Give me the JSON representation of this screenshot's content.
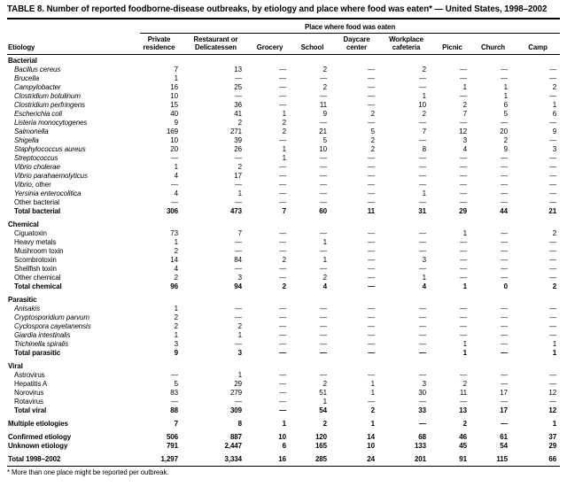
{
  "title": "TABLE 8. Number of reported foodborne-disease outbreaks, by etiology and place where food was eaten* — United States, 1998–2002",
  "table": {
    "spanner": "Place where food was eaten",
    "etiology_header": "Etiology",
    "columns": [
      "Private residence",
      "Restaurant or Delicatessen",
      "Grocery",
      "School",
      "Daycare center",
      "Workplace cafeteria",
      "Picnic",
      "Church",
      "Camp"
    ],
    "sections": [
      {
        "name": "Bacterial",
        "rows": [
          {
            "label": "Bacillus cereus",
            "italic": true,
            "values": [
              "7",
              "13",
              "—",
              "2",
              "—",
              "2",
              "—",
              "—",
              "—"
            ]
          },
          {
            "label": "Brucella",
            "italic": true,
            "values": [
              "1",
              "—",
              "—",
              "—",
              "—",
              "—",
              "—",
              "—",
              "—"
            ]
          },
          {
            "label": "Campylobacter",
            "italic": true,
            "values": [
              "16",
              "25",
              "—",
              "2",
              "—",
              "—",
              "1",
              "1",
              "2"
            ]
          },
          {
            "label": "Clostridium botulinum",
            "italic": true,
            "values": [
              "10",
              "—",
              "—",
              "—",
              "—",
              "1",
              "—",
              "1",
              "—"
            ]
          },
          {
            "label": "Clostridium perfringens",
            "italic": true,
            "values": [
              "15",
              "36",
              "—",
              "11",
              "—",
              "10",
              "2",
              "6",
              "1"
            ]
          },
          {
            "label": "Escherichia coli",
            "italic": true,
            "values": [
              "40",
              "41",
              "1",
              "9",
              "2",
              "2",
              "7",
              "5",
              "6"
            ]
          },
          {
            "label": "Listeria monocytogenes",
            "italic": true,
            "values": [
              "9",
              "2",
              "2",
              "—",
              "—",
              "—",
              "—",
              "—",
              "—"
            ]
          },
          {
            "label": "Salmonella",
            "italic": true,
            "values": [
              "169",
              "271",
              "2",
              "21",
              "5",
              "7",
              "12",
              "20",
              "9"
            ]
          },
          {
            "label": "Shigella",
            "italic": true,
            "values": [
              "10",
              "39",
              "—",
              "5",
              "2",
              "—",
              "3",
              "2",
              "—"
            ]
          },
          {
            "label": "Staphylococcus aureus",
            "italic": true,
            "values": [
              "20",
              "26",
              "1",
              "10",
              "2",
              "8",
              "4",
              "9",
              "3"
            ]
          },
          {
            "label": "Streptococcus",
            "italic": true,
            "values": [
              "—",
              "—",
              "1",
              "—",
              "—",
              "—",
              "—",
              "—",
              "—"
            ]
          },
          {
            "label": "Vibrio cholerae",
            "italic": true,
            "values": [
              "1",
              "2",
              "—",
              "—",
              "—",
              "—",
              "—",
              "—",
              "—"
            ]
          },
          {
            "label": "Vibrio parahaemolyticus",
            "italic": true,
            "values": [
              "4",
              "17",
              "—",
              "—",
              "—",
              "—",
              "—",
              "—",
              "—"
            ]
          },
          {
            "label": "Vibrio",
            "label_suffix": ", other",
            "italic": true,
            "values": [
              "—",
              "—",
              "—",
              "—",
              "—",
              "—",
              "—",
              "—",
              "—"
            ]
          },
          {
            "label": "Yersinia enterocolitica",
            "italic": true,
            "values": [
              "4",
              "1",
              "—",
              "—",
              "—",
              "1",
              "—",
              "—",
              "—"
            ]
          },
          {
            "label": "Other bacterial",
            "italic": false,
            "values": [
              "—",
              "—",
              "—",
              "—",
              "—",
              "—",
              "—",
              "—",
              "—"
            ]
          },
          {
            "label": "Total bacterial",
            "italic": false,
            "total": true,
            "values": [
              "306",
              "473",
              "7",
              "60",
              "11",
              "31",
              "29",
              "44",
              "21"
            ]
          }
        ]
      },
      {
        "name": "Chemical",
        "rows": [
          {
            "label": "Ciguatoxin",
            "italic": false,
            "values": [
              "73",
              "7",
              "—",
              "—",
              "—",
              "—",
              "1",
              "—",
              "2"
            ]
          },
          {
            "label": "Heavy metals",
            "italic": false,
            "values": [
              "1",
              "—",
              "—",
              "1",
              "—",
              "—",
              "—",
              "—",
              "—"
            ]
          },
          {
            "label": "Mushroom toxin",
            "italic": false,
            "values": [
              "2",
              "—",
              "—",
              "—",
              "—",
              "—",
              "—",
              "—",
              "—"
            ]
          },
          {
            "label": "Scombrotoxin",
            "italic": false,
            "values": [
              "14",
              "84",
              "2",
              "1",
              "—",
              "3",
              "—",
              "—",
              "—"
            ]
          },
          {
            "label": "Shellfish toxin",
            "italic": false,
            "values": [
              "4",
              "—",
              "—",
              "—",
              "—",
              "—",
              "—",
              "—",
              "—"
            ]
          },
          {
            "label": "Other chemical",
            "italic": false,
            "values": [
              "2",
              "3",
              "—",
              "2",
              "—",
              "1",
              "—",
              "—",
              "—"
            ]
          },
          {
            "label": "Total chemical",
            "italic": false,
            "total": true,
            "values": [
              "96",
              "94",
              "2",
              "4",
              "—",
              "4",
              "1",
              "0",
              "2"
            ]
          }
        ]
      },
      {
        "name": "Parasitic",
        "rows": [
          {
            "label": "Anisakis",
            "italic": true,
            "values": [
              "1",
              "—",
              "—",
              "—",
              "—",
              "—",
              "—",
              "—",
              "—"
            ]
          },
          {
            "label": "Cryptosporidium parvum",
            "italic": true,
            "values": [
              "2",
              "—",
              "—",
              "—",
              "—",
              "—",
              "—",
              "—",
              "—"
            ]
          },
          {
            "label": "Cyclospora cayetanensis",
            "italic": true,
            "values": [
              "2",
              "2",
              "—",
              "—",
              "—",
              "—",
              "—",
              "—",
              "—"
            ]
          },
          {
            "label": "Giardia intestinalis",
            "italic": true,
            "values": [
              "1",
              "1",
              "—",
              "—",
              "—",
              "—",
              "—",
              "—",
              "—"
            ]
          },
          {
            "label": "Trichinella spiralis",
            "italic": true,
            "values": [
              "3",
              "—",
              "—",
              "—",
              "—",
              "—",
              "1",
              "—",
              "1"
            ]
          },
          {
            "label": "Total parasitic",
            "italic": false,
            "total": true,
            "values": [
              "9",
              "3",
              "—",
              "—",
              "—",
              "—",
              "1",
              "—",
              "1"
            ]
          }
        ]
      },
      {
        "name": "Viral",
        "rows": [
          {
            "label": "Astrovirus",
            "italic": false,
            "values": [
              "—",
              "1",
              "—",
              "—",
              "—",
              "—",
              "—",
              "—",
              "—"
            ]
          },
          {
            "label": "Hepatitis A",
            "italic": false,
            "values": [
              "5",
              "29",
              "—",
              "2",
              "1",
              "3",
              "2",
              "—",
              "—"
            ]
          },
          {
            "label": "Norovirus",
            "italic": false,
            "values": [
              "83",
              "279",
              "—",
              "51",
              "1",
              "30",
              "11",
              "17",
              "12"
            ]
          },
          {
            "label": "Rotavirus",
            "italic": false,
            "values": [
              "—",
              "—",
              "—",
              "1",
              "—",
              "—",
              "—",
              "—",
              "—"
            ]
          },
          {
            "label": "Total viral",
            "italic": false,
            "total": true,
            "values": [
              "88",
              "309",
              "—",
              "54",
              "2",
              "33",
              "13",
              "17",
              "12"
            ]
          }
        ]
      }
    ],
    "summary_rows": [
      {
        "label": "Multiple etiologies",
        "gap_before": true,
        "values": [
          "7",
          "8",
          "1",
          "2",
          "1",
          "—",
          "2",
          "—",
          "1"
        ]
      },
      {
        "label": "Confirmed etiology",
        "gap_before": true,
        "values": [
          "506",
          "887",
          "10",
          "120",
          "14",
          "68",
          "46",
          "61",
          "37"
        ]
      },
      {
        "label": "Unknown etiology",
        "gap_before": false,
        "values": [
          "791",
          "2,447",
          "6",
          "165",
          "10",
          "133",
          "45",
          "54",
          "29"
        ]
      },
      {
        "label": "Total 1998–2002",
        "gap_before": true,
        "grand_total": true,
        "values": [
          "1,297",
          "3,334",
          "16",
          "285",
          "24",
          "201",
          "91",
          "115",
          "66"
        ]
      }
    ],
    "footnote": "* More than one place might be reported per outbreak."
  }
}
